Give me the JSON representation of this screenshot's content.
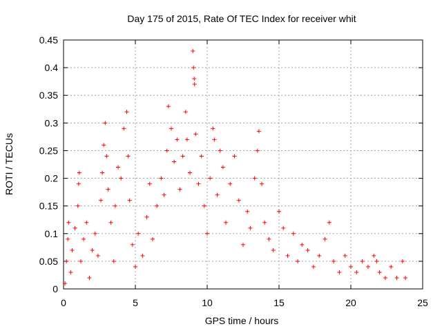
{
  "chart_data": {
    "type": "scatter",
    "title": "Day 175 of 2015, Rate Of TEC Index for receiver whit",
    "xlabel": "GPS time / hours",
    "ylabel": "ROTI / TECUs",
    "xlim": [
      0,
      25
    ],
    "ylim": [
      0,
      0.45
    ],
    "xticks": [
      0,
      5,
      10,
      15,
      20,
      25
    ],
    "yticks": [
      0,
      0.05,
      0.1,
      0.15,
      0.2,
      0.25,
      0.3,
      0.35,
      0.4,
      0.45
    ],
    "xtick_labels": [
      "0",
      "5",
      "10",
      "15",
      "20",
      "25"
    ],
    "ytick_labels": [
      "0",
      "0.05",
      "0.1",
      "0.15",
      "0.2",
      "0.25",
      "0.3",
      "0.35",
      "0.4",
      "0.45"
    ],
    "grid": true,
    "marker": "+",
    "color": "#ff0000",
    "series": [
      {
        "name": "ROTI",
        "points": [
          [
            0.1,
            0.01
          ],
          [
            0.2,
            0.05
          ],
          [
            0.3,
            0.09
          ],
          [
            0.35,
            0.12
          ],
          [
            0.5,
            0.03
          ],
          [
            0.6,
            0.07
          ],
          [
            0.8,
            0.11
          ],
          [
            1.0,
            0.15
          ],
          [
            1.05,
            0.19
          ],
          [
            1.1,
            0.21
          ],
          [
            1.2,
            0.05
          ],
          [
            1.4,
            0.09
          ],
          [
            1.6,
            0.12
          ],
          [
            1.8,
            0.02
          ],
          [
            2.0,
            0.07
          ],
          [
            2.2,
            0.1
          ],
          [
            2.4,
            0.06
          ],
          [
            2.6,
            0.16
          ],
          [
            2.7,
            0.21
          ],
          [
            2.8,
            0.26
          ],
          [
            2.9,
            0.3
          ],
          [
            3.0,
            0.24
          ],
          [
            3.1,
            0.18
          ],
          [
            3.3,
            0.12
          ],
          [
            3.5,
            0.05
          ],
          [
            3.6,
            0.15
          ],
          [
            3.8,
            0.22
          ],
          [
            4.0,
            0.2
          ],
          [
            4.2,
            0.29
          ],
          [
            4.4,
            0.32
          ],
          [
            4.5,
            0.24
          ],
          [
            4.6,
            0.16
          ],
          [
            4.8,
            0.08
          ],
          [
            5.0,
            0.04
          ],
          [
            5.2,
            0.1
          ],
          [
            5.5,
            0.06
          ],
          [
            5.8,
            0.13
          ],
          [
            6.0,
            0.19
          ],
          [
            6.2,
            0.09
          ],
          [
            6.5,
            0.15
          ],
          [
            6.8,
            0.2
          ],
          [
            7.0,
            0.17
          ],
          [
            7.2,
            0.25
          ],
          [
            7.3,
            0.33
          ],
          [
            7.5,
            0.29
          ],
          [
            7.7,
            0.23
          ],
          [
            7.9,
            0.27
          ],
          [
            8.1,
            0.18
          ],
          [
            8.3,
            0.24
          ],
          [
            8.5,
            0.32
          ],
          [
            8.6,
            0.27
          ],
          [
            8.8,
            0.21
          ],
          [
            9.0,
            0.43
          ],
          [
            9.05,
            0.4
          ],
          [
            9.1,
            0.38
          ],
          [
            9.12,
            0.37
          ],
          [
            9.2,
            0.28
          ],
          [
            9.4,
            0.19
          ],
          [
            9.6,
            0.24
          ],
          [
            9.8,
            0.15
          ],
          [
            10.0,
            0.1
          ],
          [
            10.2,
            0.2
          ],
          [
            10.4,
            0.29
          ],
          [
            10.5,
            0.27
          ],
          [
            10.7,
            0.17
          ],
          [
            10.9,
            0.25
          ],
          [
            11.1,
            0.22
          ],
          [
            11.3,
            0.12
          ],
          [
            11.6,
            0.19
          ],
          [
            11.9,
            0.24
          ],
          [
            12.2,
            0.16
          ],
          [
            12.5,
            0.08
          ],
          [
            12.8,
            0.14
          ],
          [
            13.0,
            0.11
          ],
          [
            13.3,
            0.2
          ],
          [
            13.5,
            0.25
          ],
          [
            13.6,
            0.285
          ],
          [
            13.8,
            0.19
          ],
          [
            14.0,
            0.12
          ],
          [
            14.3,
            0.09
          ],
          [
            14.6,
            0.07
          ],
          [
            15.0,
            0.14
          ],
          [
            15.3,
            0.11
          ],
          [
            15.6,
            0.06
          ],
          [
            16.0,
            0.1
          ],
          [
            16.3,
            0.05
          ],
          [
            16.6,
            0.08
          ],
          [
            17.0,
            0.07
          ],
          [
            17.4,
            0.04
          ],
          [
            17.8,
            0.06
          ],
          [
            18.2,
            0.09
          ],
          [
            18.5,
            0.12
          ],
          [
            18.8,
            0.05
          ],
          [
            19.2,
            0.03
          ],
          [
            19.6,
            0.06
          ],
          [
            20.0,
            0.04
          ],
          [
            20.4,
            0.03
          ],
          [
            20.8,
            0.05
          ],
          [
            21.2,
            0.04
          ],
          [
            21.6,
            0.06
          ],
          [
            21.8,
            0.05
          ],
          [
            22.0,
            0.03
          ],
          [
            22.4,
            0.02
          ],
          [
            22.8,
            0.04
          ],
          [
            23.2,
            0.02
          ],
          [
            23.6,
            0.05
          ],
          [
            23.8,
            0.02
          ]
        ]
      }
    ]
  }
}
